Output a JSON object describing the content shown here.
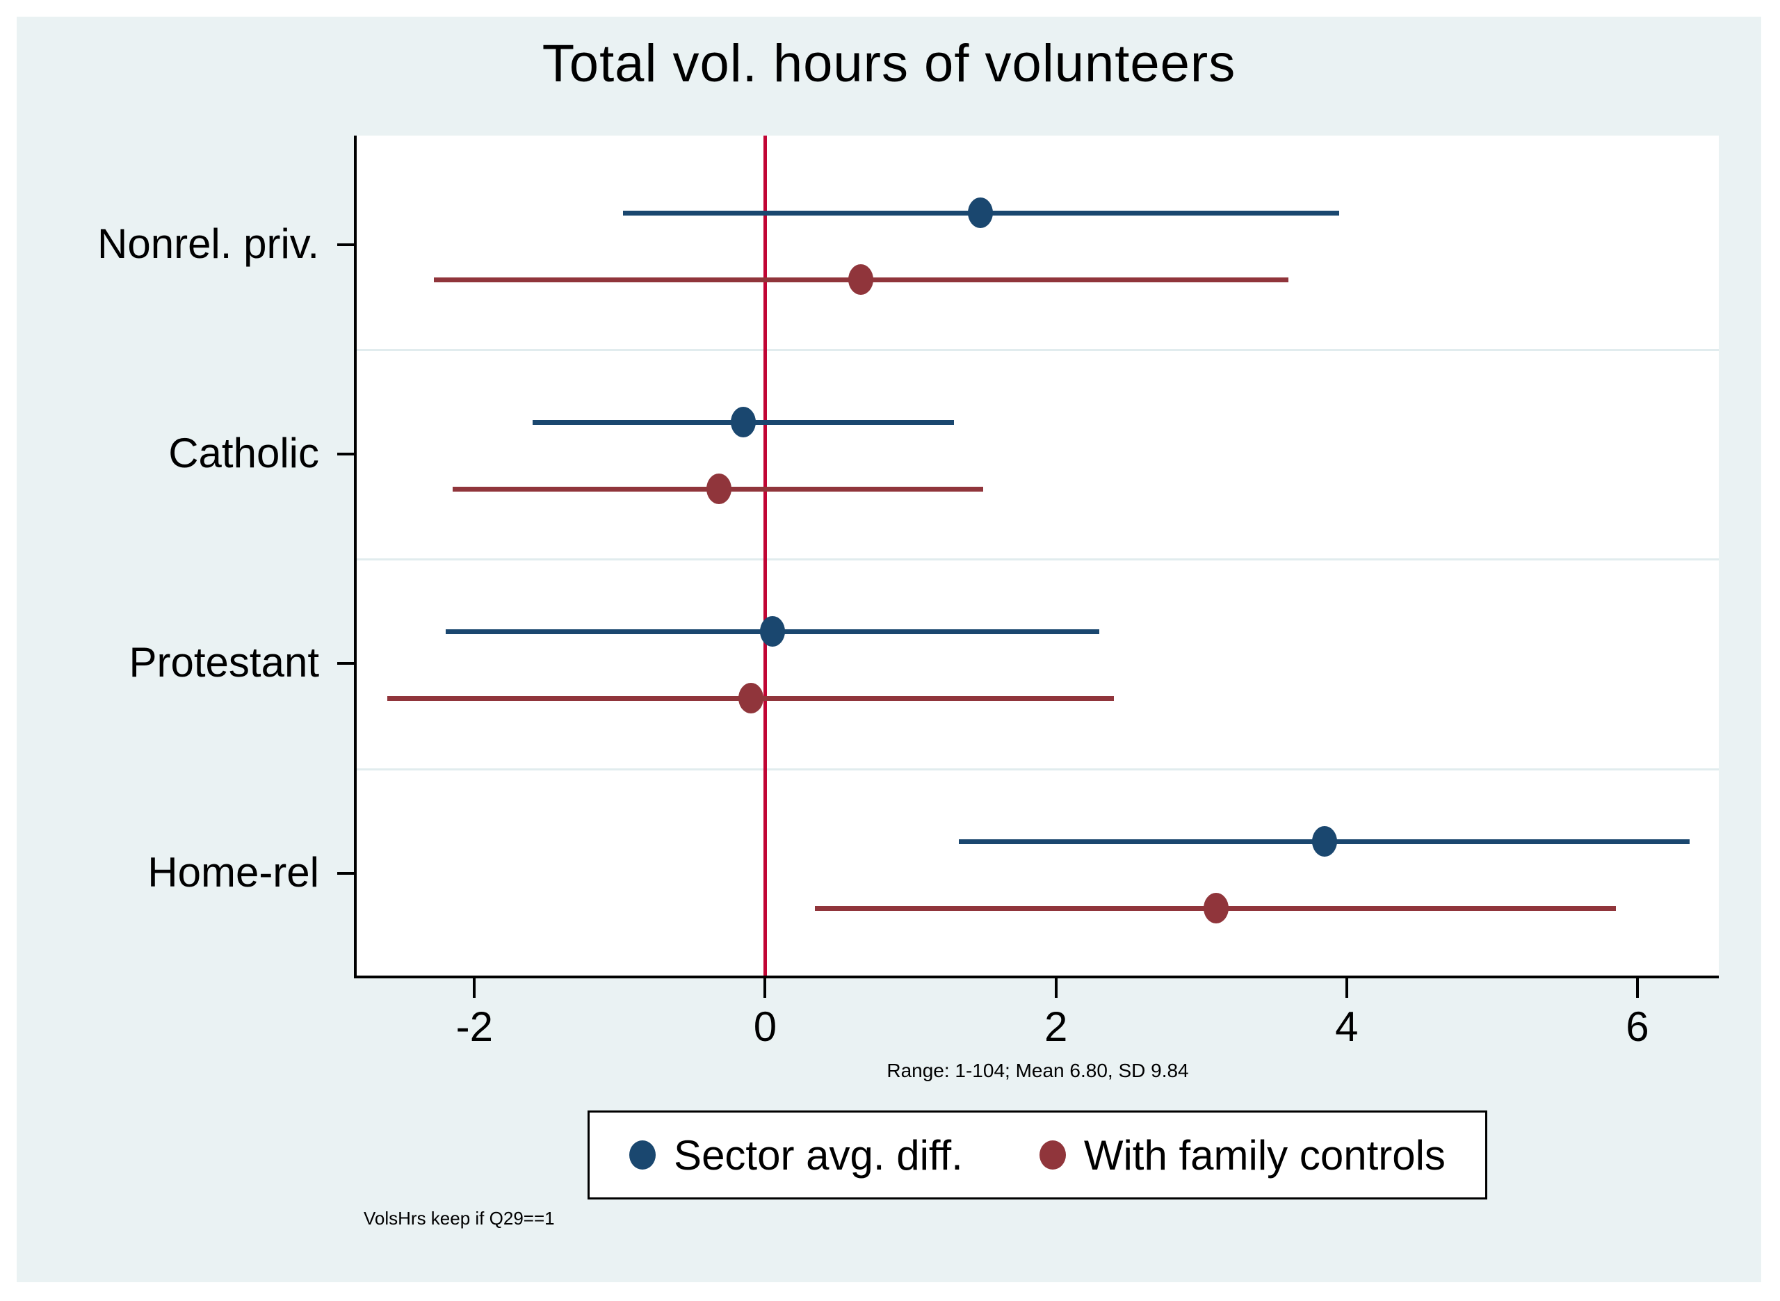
{
  "chart": {
    "title": "Total vol. hours of volunteers",
    "note": "Range: 1-104; Mean 6.80, SD 9.84",
    "caption": "VolsHrs keep if Q29==1"
  },
  "chart_data": {
    "type": "scatter",
    "subtype": "horizontal-coefficient-plot",
    "title": "Total vol. hours of volunteers",
    "categories": [
      "Nonrel. priv.",
      "Catholic",
      "Protestant",
      "Home-rel"
    ],
    "series": [
      {
        "name": "Sector avg. diff.",
        "color": "#1a476f",
        "estimates": [
          1.48,
          -0.15,
          0.05,
          3.85
        ],
        "ci_low": [
          -0.98,
          -1.6,
          -2.2,
          1.33
        ],
        "ci_high": [
          3.95,
          1.3,
          2.3,
          6.36
        ]
      },
      {
        "name": "With family controls",
        "color": "#90353b",
        "estimates": [
          0.66,
          -0.32,
          -0.1,
          3.1
        ],
        "ci_low": [
          -2.28,
          -2.15,
          -2.6,
          0.34
        ],
        "ci_high": [
          3.6,
          1.5,
          2.4,
          5.85
        ]
      }
    ],
    "x_ticks": [
      -2,
      0,
      2,
      4,
      6
    ],
    "xlim": [
      -2.81,
      6.56
    ],
    "zero_line_x": 0,
    "zero_line_color": "#c10534",
    "plot_background": "#ffffff",
    "canvas_background": "#eaf2f3",
    "grid": "horizontal-between-categories",
    "legend_position": "bottom",
    "note": "Range: 1-104; Mean 6.80, SD 9.84",
    "caption": "VolsHrs keep if Q29==1"
  }
}
